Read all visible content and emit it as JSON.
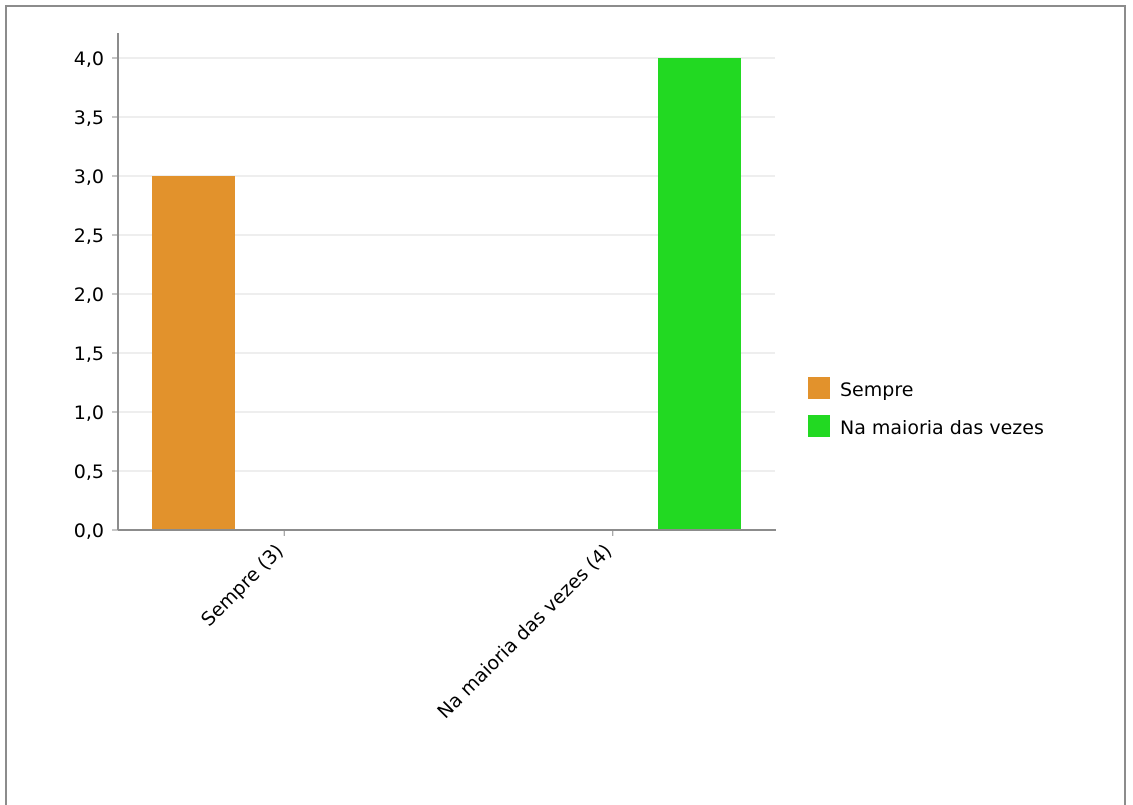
{
  "chart_data": {
    "type": "bar",
    "title": "",
    "xlabel": "",
    "ylabel": "",
    "categories": [
      "Sempre (3)",
      "Na maioria das vezes (4)"
    ],
    "series": [
      {
        "name": "Sempre",
        "color": "#e2922c",
        "values": [
          3,
          0
        ]
      },
      {
        "name": "Na maioria das vezes",
        "color": "#22d922",
        "values": [
          0,
          4
        ]
      }
    ],
    "ylim": [
      0,
      4
    ],
    "yticks": [
      0,
      0.5,
      1,
      1.5,
      2,
      2.5,
      3,
      3.5,
      4
    ],
    "ytick_labels": [
      "0,0",
      "0,5",
      "1,0",
      "1,5",
      "2,0",
      "2,5",
      "3,0",
      "3,5",
      "4,0"
    ],
    "grid": true,
    "legend": {
      "position": "right",
      "entries": [
        "Sempre",
        "Na maioria das vezes"
      ]
    }
  }
}
